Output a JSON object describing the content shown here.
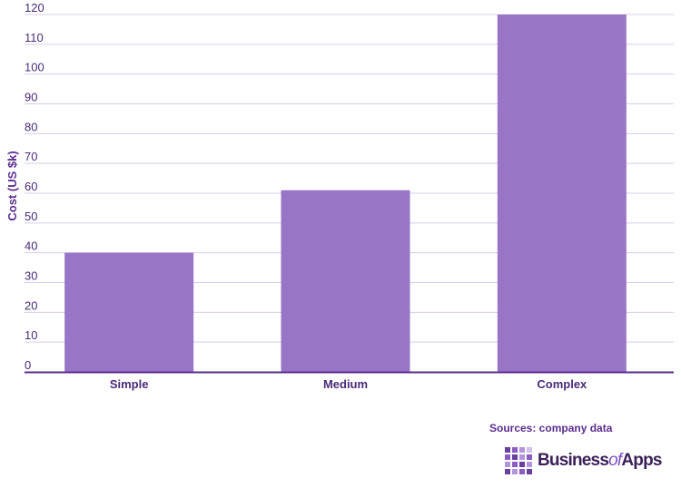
{
  "chart_data": {
    "type": "bar",
    "categories": [
      "Simple",
      "Medium",
      "Complex"
    ],
    "values": [
      40,
      61,
      120
    ],
    "title": "",
    "xlabel": "",
    "ylabel": "Cost (US $k)",
    "ylim": [
      0,
      120
    ],
    "yticks": [
      0,
      10,
      20,
      30,
      40,
      50,
      60,
      70,
      80,
      90,
      100,
      110,
      120
    ],
    "grid": true,
    "legend": "none",
    "bar_color": "#9975c7",
    "grid_color": "#d9cceb",
    "axis_color": "#5b2d8e"
  },
  "source": {
    "text": "Sources: company data"
  },
  "logo": {
    "name_part1": "Business",
    "name_part2": "of",
    "name_part3": "Apps",
    "grid_colors": [
      "#6b3fa0",
      "#8b5cc4",
      "#b395dd",
      "#d2c0ee",
      "#8b5cc4",
      "#6b3fa0",
      "#b395dd",
      "#8b5cc4",
      "#b395dd",
      "#8b5cc4",
      "#6b3fa0",
      "#b395dd",
      "#6b3fa0",
      "#b395dd",
      "#8b5cc4",
      "#6b3fa0"
    ]
  }
}
